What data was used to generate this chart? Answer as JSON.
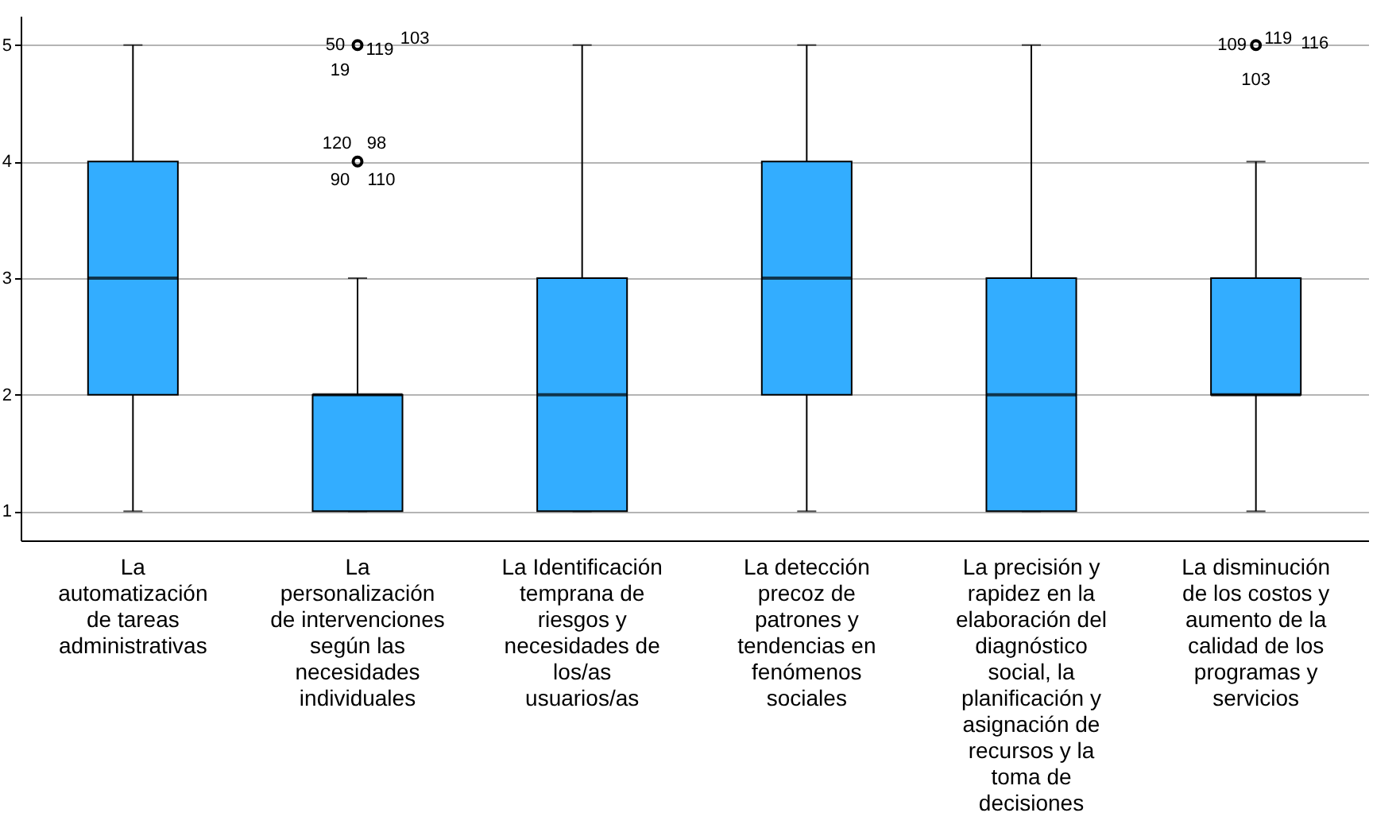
{
  "chart_data": {
    "type": "box",
    "color": "#33adff",
    "grid": "y",
    "ylim": [
      0.75,
      5.25
    ],
    "yticks": [
      1,
      2,
      3,
      4,
      5
    ],
    "categories": [
      "La automatización de tareas administrativas",
      "La personalización de intervenciones según las necesidades individuales",
      "La Identificación temprana de riesgos y necesidades de los/as usuarios/as",
      "La detección precoz de patrones y tendencias en fenómenos sociales",
      "La precisión y rapidez en la elaboración del diagnóstico social, la planificación y asignación de recursos y la toma de decisiones",
      "La disminución de los costos y aumento de la calidad de los programas y servicios"
    ],
    "boxes": [
      {
        "low": 1,
        "q1": 2,
        "median": 3,
        "q3": 4,
        "high": 5
      },
      {
        "low": 1,
        "q1": 1,
        "median": 2,
        "q3": 2,
        "high": 3,
        "outliers": [
          4,
          5
        ]
      },
      {
        "low": 1,
        "q1": 1,
        "median": 2,
        "q3": 3,
        "high": 5
      },
      {
        "low": 1,
        "q1": 2,
        "median": 3,
        "q3": 4,
        "high": 5
      },
      {
        "low": 1,
        "q1": 1,
        "median": 2,
        "q3": 3,
        "high": 5
      },
      {
        "low": 1,
        "q1": 2,
        "median": 2,
        "q3": 3,
        "high": 4,
        "outliers": [
          5
        ]
      }
    ],
    "annotations": [
      "120",
      "98",
      "90",
      "110",
      "50",
      "119",
      "103",
      "19",
      "109",
      "119",
      "116",
      "103"
    ]
  }
}
